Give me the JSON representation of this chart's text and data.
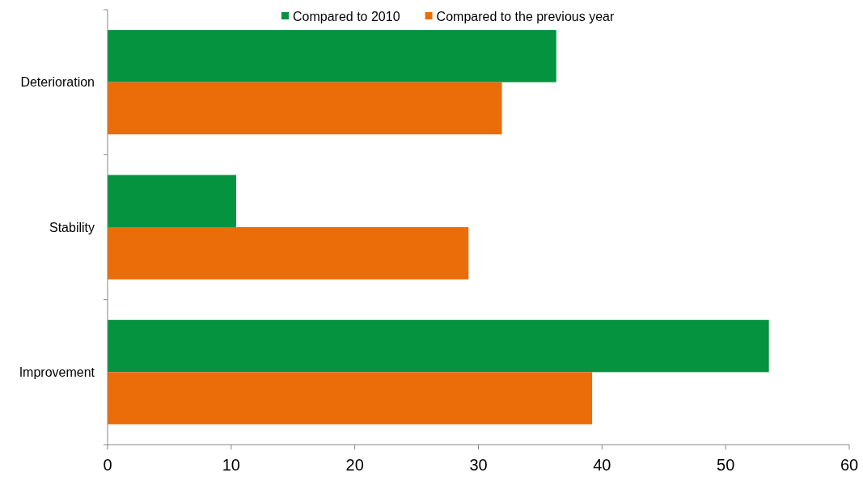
{
  "chart_data": {
    "type": "bar",
    "orientation": "horizontal",
    "categories": [
      "Deterioration",
      "Stability",
      "Improvement"
    ],
    "series": [
      {
        "name": "Compared to 2010",
        "color": "#05933f",
        "values": [
          36.3,
          10.4,
          53.5
        ]
      },
      {
        "name": "Compared to the previous year",
        "color": "#ea6d0a",
        "values": [
          31.9,
          29.2,
          39.2
        ]
      }
    ],
    "xlim": [
      0,
      60
    ],
    "xticks": [
      0,
      10,
      20,
      30,
      40,
      50,
      60
    ],
    "grid": false,
    "legend": "top"
  }
}
